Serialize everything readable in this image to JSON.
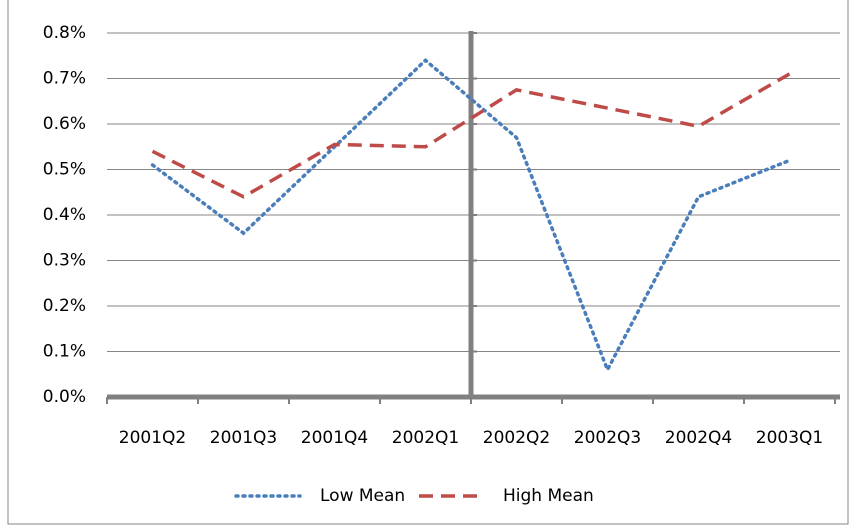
{
  "chart_data": {
    "type": "line",
    "categories": [
      "2001Q2",
      "2001Q3",
      "2001Q4",
      "2002Q1",
      "2002Q2",
      "2002Q3",
      "2002Q4",
      "2003Q1"
    ],
    "series": [
      {
        "name": "Low Mean",
        "color": "#4a7ebb",
        "style": "dotted",
        "values": [
          0.51,
          0.36,
          0.55,
          0.74,
          0.57,
          0.06,
          0.44,
          0.52
        ]
      },
      {
        "name": "High Mean",
        "color": "#be4b48",
        "style": "dashed",
        "values": [
          0.54,
          0.44,
          0.555,
          0.55,
          0.675,
          0.635,
          0.595,
          0.71
        ]
      }
    ],
    "ylim": [
      0,
      0.8
    ],
    "yticks": [
      {
        "value": 0,
        "label": "0.0%"
      },
      {
        "value": 0.1,
        "label": "0.1%"
      },
      {
        "value": 0.2,
        "label": "0.2%"
      },
      {
        "value": 0.3,
        "label": "0.3%"
      },
      {
        "value": 0.4,
        "label": "0.4%"
      },
      {
        "value": 0.5,
        "label": "0.5%"
      },
      {
        "value": 0.6,
        "label": "0.6%"
      },
      {
        "value": 0.7,
        "label": "0.7%"
      },
      {
        "value": 0.8,
        "label": "0.8%"
      }
    ],
    "grid": true,
    "legend": "bottom"
  }
}
